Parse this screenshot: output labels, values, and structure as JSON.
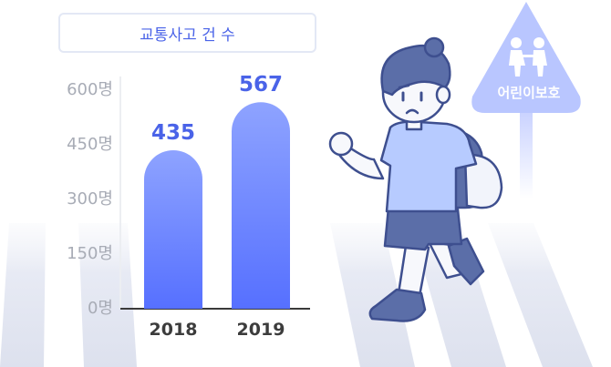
{
  "chart_data": {
    "type": "bar",
    "title": "교통사고 건 수",
    "categories": [
      "2018",
      "2019"
    ],
    "values": [
      435,
      567
    ],
    "value_labels": [
      "435",
      "567"
    ],
    "ylim": [
      0,
      600
    ],
    "ytick_labels": [
      "0명",
      "150명",
      "300명",
      "450명",
      "600명"
    ],
    "grid": false,
    "bar_color_top": "#8ea3ff",
    "bar_color_bottom": "#5670ff",
    "value_label_color": "#4a63e8"
  },
  "sign": {
    "label": "어린이보호",
    "color": "#b9c6ff"
  },
  "illustration": {
    "subject": "child-walking-on-crosswalk",
    "accent_color": "#5a6fb0"
  }
}
